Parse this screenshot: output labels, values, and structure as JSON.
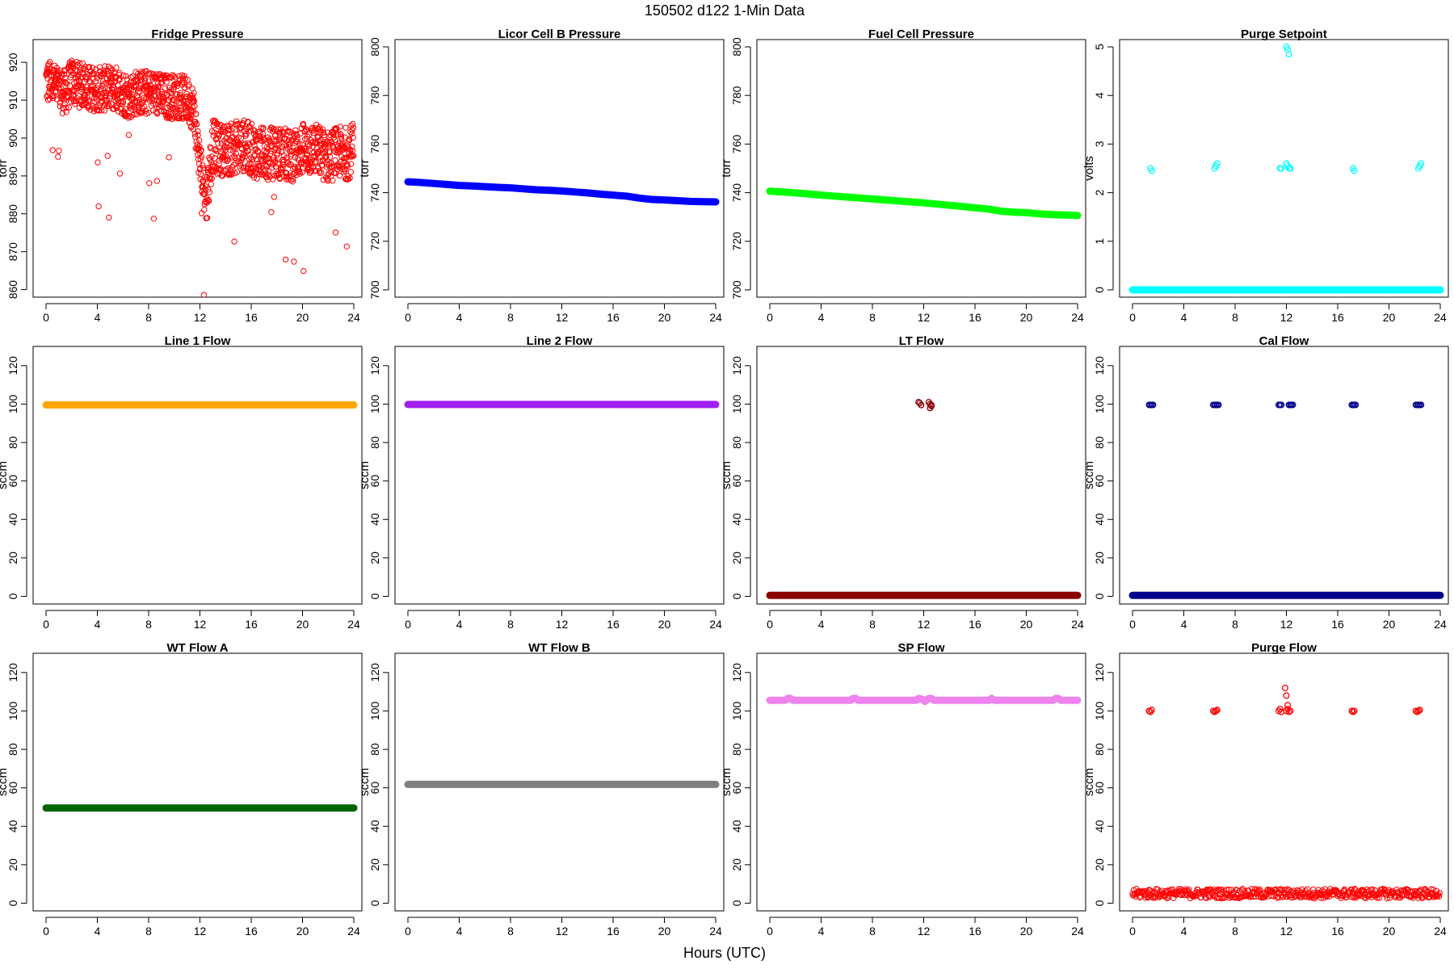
{
  "figure": {
    "suptitle": "150502   d122   1-Min Data",
    "xlabel": "Hours (UTC)"
  },
  "chart_data": [
    {
      "type": "scatter",
      "title": "Fridge Pressure",
      "ylabel": "torr",
      "xlim": [
        0,
        24
      ],
      "ylim": [
        858,
        926
      ],
      "xticks": [
        0,
        4,
        8,
        12,
        16,
        20,
        24
      ],
      "yticks": [
        860,
        870,
        880,
        890,
        900,
        910,
        920
      ],
      "color": "#ff0000",
      "marker": "open-circle",
      "grid": false,
      "series": [
        {
          "x": [
            0,
            0.5,
            1,
            1.5,
            2,
            2.5,
            3,
            3.5,
            4,
            4.5,
            5,
            5.5,
            6,
            6.5,
            7,
            7.5,
            8,
            8.5,
            9,
            9.5,
            10,
            10.5,
            11,
            11.5,
            12,
            12.5,
            13,
            13.5,
            14,
            14.5,
            15,
            15.5,
            16,
            16.5,
            17,
            17.5,
            18,
            18.5,
            19,
            19.5,
            20,
            20.5,
            21,
            21.5,
            22,
            22.5,
            23,
            23.5,
            24
          ],
          "y": [
            915,
            914,
            913,
            912,
            915,
            914,
            914,
            913,
            913,
            913,
            913,
            913,
            912,
            911,
            912,
            912,
            912,
            912,
            911,
            911,
            911,
            911,
            910,
            908,
            893,
            884,
            898,
            897,
            897,
            897,
            898,
            898,
            897,
            896,
            896,
            896,
            896,
            896,
            895,
            896,
            897,
            897,
            897,
            896,
            895,
            896,
            896,
            896,
            897
          ]
        }
      ]
    },
    {
      "type": "line",
      "title": "Licor Cell B Pressure",
      "ylabel": "torr",
      "xlim": [
        0,
        24
      ],
      "ylim": [
        697,
        803
      ],
      "xticks": [
        0,
        4,
        8,
        12,
        16,
        20,
        24
      ],
      "yticks": [
        700,
        720,
        740,
        760,
        780,
        800
      ],
      "color": "#0000ff",
      "grid": false,
      "series": [
        {
          "x": [
            0,
            1,
            2,
            3,
            4,
            5,
            6,
            7,
            8,
            9,
            10,
            11,
            12,
            13,
            14,
            15,
            16,
            17,
            18,
            19,
            20,
            21,
            22,
            23,
            24
          ],
          "y": [
            744.5,
            744.2,
            743.8,
            743.4,
            743,
            742.8,
            742.5,
            742.2,
            742,
            741.6,
            741.2,
            741,
            740.7,
            740.3,
            739.9,
            739.4,
            739,
            738.6,
            737.8,
            737.2,
            737,
            736.7,
            736.4,
            736.3,
            736.2
          ]
        }
      ]
    },
    {
      "type": "line",
      "title": "Fuel Cell Pressure",
      "ylabel": "torr",
      "xlim": [
        0,
        24
      ],
      "ylim": [
        697,
        803
      ],
      "xticks": [
        0,
        4,
        8,
        12,
        16,
        20,
        24
      ],
      "yticks": [
        700,
        720,
        740,
        760,
        780,
        800
      ],
      "color": "#00ff00",
      "grid": false,
      "series": [
        {
          "x": [
            0,
            1,
            2,
            3,
            4,
            5,
            6,
            7,
            8,
            9,
            10,
            11,
            12,
            13,
            14,
            15,
            16,
            17,
            18,
            19,
            20,
            21,
            22,
            23,
            24
          ],
          "y": [
            740.6,
            740.3,
            739.9,
            739.5,
            739,
            738.6,
            738.2,
            737.8,
            737.4,
            737,
            736.6,
            736.2,
            735.8,
            735.3,
            734.8,
            734.3,
            733.8,
            733.3,
            732.4,
            732,
            731.8,
            731.3,
            731,
            730.8,
            730.6
          ]
        }
      ]
    },
    {
      "type": "scatter",
      "title": "Purge Setpoint",
      "ylabel": "volts",
      "xlim": [
        0,
        24
      ],
      "ylim": [
        -0.15,
        5.15
      ],
      "xticks": [
        0,
        4,
        8,
        12,
        16,
        20,
        24
      ],
      "yticks": [
        0,
        1,
        2,
        3,
        4,
        5
      ],
      "color": "#00ffff",
      "marker": "open-circle",
      "grid": false,
      "baseline": 0,
      "series": [
        {
          "x": [
            1.4,
            1.5,
            6.4,
            6.5,
            6.6,
            11.5,
            11.6,
            12.0,
            12.1,
            12.2,
            12.3,
            17.2,
            17.3,
            22.3,
            22.4,
            22.5,
            12.0,
            12.1,
            12.2
          ],
          "y": [
            2.5,
            2.45,
            2.5,
            2.55,
            2.6,
            2.5,
            2.5,
            2.6,
            2.55,
            2.5,
            2.5,
            2.5,
            2.45,
            2.5,
            2.55,
            2.6,
            5.0,
            4.95,
            4.85
          ]
        }
      ]
    },
    {
      "type": "line",
      "title": "Line 1 Flow",
      "ylabel": "sccm",
      "xlim": [
        0,
        24
      ],
      "ylim": [
        -4,
        130
      ],
      "xticks": [
        0,
        4,
        8,
        12,
        16,
        20,
        24
      ],
      "yticks": [
        0,
        20,
        40,
        60,
        80,
        100,
        120
      ],
      "color": "#ffa500",
      "grid": false,
      "series": [
        {
          "x": [
            0,
            24
          ],
          "y": [
            99.6,
            99.6
          ]
        }
      ]
    },
    {
      "type": "line",
      "title": "Line 2 Flow",
      "ylabel": "sccm",
      "xlim": [
        0,
        24
      ],
      "ylim": [
        -4,
        130
      ],
      "xticks": [
        0,
        4,
        8,
        12,
        16,
        20,
        24
      ],
      "yticks": [
        0,
        20,
        40,
        60,
        80,
        100,
        120
      ],
      "color": "#a020f0",
      "grid": false,
      "series": [
        {
          "x": [
            0,
            24
          ],
          "y": [
            99.8,
            99.8
          ]
        }
      ]
    },
    {
      "type": "scatter",
      "title": "LT Flow",
      "ylabel": "sccm",
      "xlim": [
        0,
        24
      ],
      "ylim": [
        -4,
        130
      ],
      "xticks": [
        0,
        4,
        8,
        12,
        16,
        20,
        24
      ],
      "yticks": [
        0,
        20,
        40,
        60,
        80,
        100,
        120
      ],
      "color": "#8b0000",
      "marker": "open-circle",
      "grid": false,
      "baseline": 0.5,
      "series": [
        {
          "x": [
            11.6,
            11.7,
            11.8,
            12.4,
            12.5,
            12.6,
            12.5,
            12.6
          ],
          "y": [
            101,
            100.5,
            99.5,
            101,
            100,
            99,
            98,
            99.5
          ]
        }
      ]
    },
    {
      "type": "scatter",
      "title": "Cal Flow",
      "ylabel": "sccm",
      "xlim": [
        0,
        24
      ],
      "ylim": [
        -4,
        130
      ],
      "xticks": [
        0,
        4,
        8,
        12,
        16,
        20,
        24
      ],
      "yticks": [
        0,
        20,
        40,
        60,
        80,
        100,
        120
      ],
      "color": "#00008b",
      "marker": "open-circle",
      "grid": false,
      "baseline": 0.5,
      "series": [
        {
          "x": [
            1.3,
            1.4,
            1.5,
            1.6,
            6.3,
            6.4,
            6.5,
            6.6,
            6.7,
            11.4,
            11.5,
            11.6,
            12.2,
            12.3,
            12.4,
            12.5,
            17.1,
            17.2,
            17.3,
            17.4,
            22.1,
            22.2,
            22.3,
            22.4,
            22.5
          ],
          "y": [
            99.6,
            99.6,
            99.6,
            99.6,
            99.6,
            99.6,
            99.6,
            99.6,
            99.6,
            99.6,
            99.6,
            99.6,
            99.6,
            99.6,
            99.6,
            99.6,
            99.6,
            99.6,
            99.6,
            99.6,
            99.6,
            99.6,
            99.6,
            99.6,
            99.6
          ]
        }
      ]
    },
    {
      "type": "line",
      "title": "WT Flow A",
      "ylabel": "sccm",
      "xlim": [
        0,
        24
      ],
      "ylim": [
        -4,
        130
      ],
      "xticks": [
        0,
        4,
        8,
        12,
        16,
        20,
        24
      ],
      "yticks": [
        0,
        20,
        40,
        60,
        80,
        100,
        120
      ],
      "color": "#006400",
      "grid": false,
      "series": [
        {
          "x": [
            0,
            24
          ],
          "y": [
            49.5,
            49.5
          ]
        }
      ]
    },
    {
      "type": "line",
      "title": "WT Flow B",
      "ylabel": "sccm",
      "xlim": [
        0,
        24
      ],
      "ylim": [
        -4,
        130
      ],
      "xticks": [
        0,
        4,
        8,
        12,
        16,
        20,
        24
      ],
      "yticks": [
        0,
        20,
        40,
        60,
        80,
        100,
        120
      ],
      "color": "#808080",
      "grid": false,
      "series": [
        {
          "x": [
            0,
            24
          ],
          "y": [
            61.8,
            61.8
          ]
        }
      ]
    },
    {
      "type": "line",
      "title": "SP Flow",
      "ylabel": "sccm",
      "xlim": [
        0,
        24
      ],
      "ylim": [
        -4,
        130
      ],
      "xticks": [
        0,
        4,
        8,
        12,
        16,
        20,
        24
      ],
      "yticks": [
        0,
        20,
        40,
        60,
        80,
        100,
        120
      ],
      "color": "#ee82ee",
      "grid": false,
      "series": [
        {
          "x": [
            0,
            1.2,
            1.4,
            1.6,
            1.8,
            6.3,
            6.5,
            6.7,
            6.9,
            11.4,
            11.6,
            11.9,
            12.1,
            12.4,
            12.6,
            12.8,
            17.1,
            17.3,
            17.5,
            22.1,
            22.3,
            22.5,
            22.7,
            24
          ],
          "y": [
            105.5,
            105.5,
            106.5,
            106.5,
            105.5,
            105.5,
            106.5,
            106.5,
            105.5,
            105.5,
            106.5,
            106,
            105,
            106.5,
            106.5,
            105.5,
            105.5,
            106.5,
            105.5,
            105.5,
            106.5,
            106.5,
            105.5,
            105.5
          ]
        }
      ]
    },
    {
      "type": "scatter",
      "title": "Purge Flow",
      "ylabel": "sccm",
      "xlim": [
        0,
        24
      ],
      "ylim": [
        -4,
        130
      ],
      "xticks": [
        0,
        4,
        8,
        12,
        16,
        20,
        24
      ],
      "yticks": [
        0,
        20,
        40,
        60,
        80,
        100,
        120
      ],
      "color": "#ff0000",
      "marker": "open-circle",
      "grid": false,
      "baseline": 5,
      "series": [
        {
          "x": [
            1.3,
            1.4,
            1.5,
            6.3,
            6.4,
            6.5,
            6.6,
            11.4,
            11.5,
            11.6,
            12.0,
            12.1,
            12.2,
            12.3,
            17.1,
            17.2,
            17.3,
            22.1,
            22.2,
            22.3,
            22.4,
            11.9,
            12.0,
            12.1
          ],
          "y": [
            100,
            99.5,
            100.5,
            100,
            99.5,
            100,
            100.5,
            100,
            101,
            99.5,
            100,
            101,
            99.5,
            100,
            100,
            99.5,
            100,
            100,
            99.5,
            100,
            100.5,
            112,
            108,
            103
          ]
        }
      ]
    }
  ]
}
